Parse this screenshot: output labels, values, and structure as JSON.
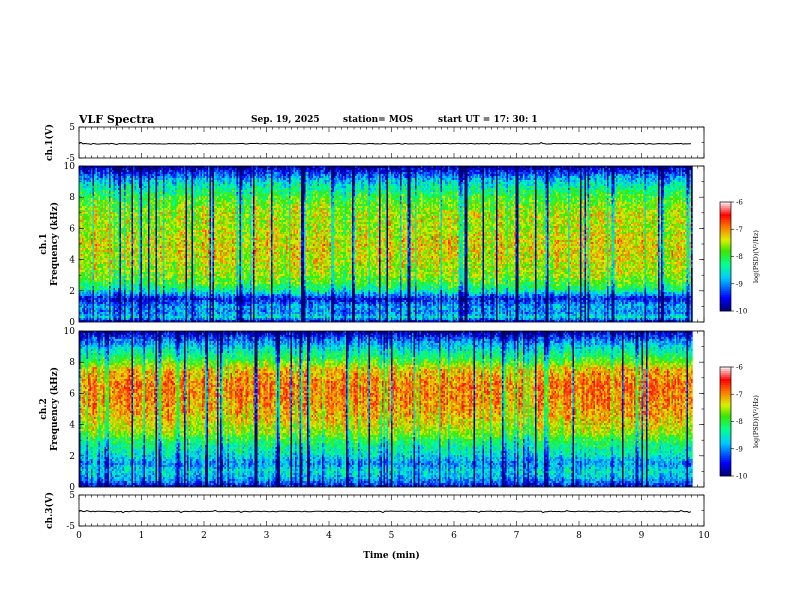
{
  "header": {
    "title": "VLF Spectra",
    "date": "Sep. 19, 2025",
    "station": "station= MOS",
    "start": "start  UT =   17: 30: 1"
  },
  "chart_data": [
    {
      "type": "line",
      "panel": "ch1-waveform",
      "ylabel": "ch.1(V)",
      "ylim": [
        -5,
        5
      ],
      "yticks": [
        "5",
        "-5"
      ],
      "xlim": [
        0,
        10
      ],
      "data_extent_min": [
        0,
        9.82
      ],
      "level": -0.4
    },
    {
      "type": "heatmap",
      "panel": "ch1-spectrogram",
      "ylabel": "ch.1  Frequency (kHz)",
      "ylim": [
        0,
        10
      ],
      "yticks": [
        "0",
        "2",
        "4",
        "6",
        "8",
        "10"
      ],
      "xlim": [
        0,
        10
      ],
      "data_extent_min": [
        0,
        9.82
      ],
      "colorbar": {
        "label": "log(PSD)(V²/Hz)",
        "range": [
          -10,
          -6
        ],
        "ticks": [
          "-6",
          "-7",
          "-8",
          "-9",
          "-10"
        ]
      },
      "profile": [
        {
          "f": 0.0,
          "v": -9.7
        },
        {
          "f": 0.3,
          "v": -8.6
        },
        {
          "f": 0.6,
          "v": -9.0
        },
        {
          "f": 1.0,
          "v": -8.9
        },
        {
          "f": 1.5,
          "v": -9.5
        },
        {
          "f": 2.0,
          "v": -8.4
        },
        {
          "f": 2.5,
          "v": -7.9
        },
        {
          "f": 3.0,
          "v": -7.6
        },
        {
          "f": 4.0,
          "v": -7.4
        },
        {
          "f": 5.0,
          "v": -7.3
        },
        {
          "f": 6.0,
          "v": -7.5
        },
        {
          "f": 7.0,
          "v": -7.5
        },
        {
          "f": 8.0,
          "v": -7.9
        },
        {
          "f": 8.8,
          "v": -8.5
        },
        {
          "f": 9.3,
          "v": -9.0
        },
        {
          "f": 10.0,
          "v": -9.9
        }
      ]
    },
    {
      "type": "heatmap",
      "panel": "ch2-spectrogram",
      "ylabel": "ch.2  Frequency (kHz)",
      "ylim": [
        0,
        10
      ],
      "yticks": [
        "0",
        "2",
        "4",
        "6",
        "8",
        "10"
      ],
      "xlim": [
        0,
        10
      ],
      "data_extent_min": [
        0,
        9.82
      ],
      "colorbar": {
        "label": "log(PSD)(V²/Hz)",
        "range": [
          -10,
          -6
        ],
        "ticks": [
          "-6",
          "-7",
          "-8",
          "-9",
          "-10"
        ]
      },
      "profile": [
        {
          "f": 0.0,
          "v": -9.6
        },
        {
          "f": 0.5,
          "v": -8.9
        },
        {
          "f": 1.0,
          "v": -8.6
        },
        {
          "f": 1.5,
          "v": -9.0
        },
        {
          "f": 2.0,
          "v": -8.6
        },
        {
          "f": 2.8,
          "v": -8.2
        },
        {
          "f": 3.5,
          "v": -7.6
        },
        {
          "f": 4.5,
          "v": -7.2
        },
        {
          "f": 5.5,
          "v": -7.0
        },
        {
          "f": 6.5,
          "v": -6.9
        },
        {
          "f": 7.5,
          "v": -7.2
        },
        {
          "f": 8.2,
          "v": -8.0
        },
        {
          "f": 9.0,
          "v": -8.7
        },
        {
          "f": 9.5,
          "v": -9.2
        },
        {
          "f": 10.0,
          "v": -9.9
        }
      ]
    },
    {
      "type": "line",
      "panel": "ch3-waveform",
      "ylabel": "ch.3(V)",
      "ylim": [
        -5,
        5
      ],
      "yticks": [
        "5",
        "-5"
      ],
      "xlim": [
        0,
        10
      ],
      "data_extent_min": [
        0,
        9.82
      ],
      "level": -0.3
    }
  ],
  "x_axis": {
    "label": "Time  (min)",
    "ticks": [
      "0",
      "1",
      "2",
      "3",
      "4",
      "5",
      "6",
      "7",
      "8",
      "9",
      "10"
    ]
  }
}
